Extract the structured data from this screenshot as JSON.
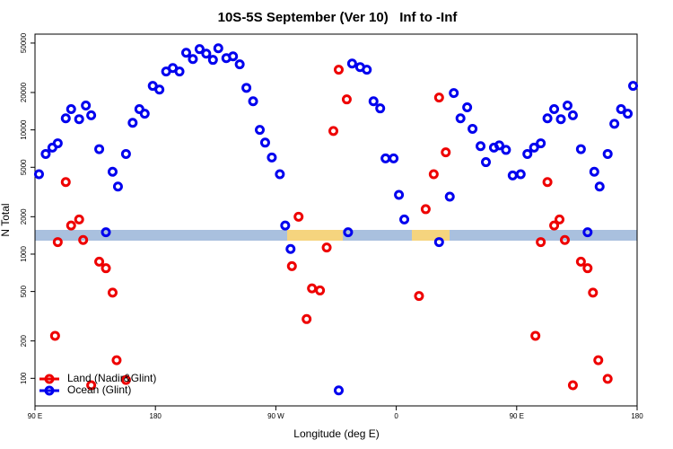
{
  "chart_data": {
    "type": "scatter",
    "title": "10S-5S September (Ver 10)   Inf to -Inf",
    "xlabel": "Longitude (deg E)",
    "ylabel": "N Total",
    "xlim": [
      90,
      540
    ],
    "xticks": [
      {
        "value": 90,
        "label": "90 E"
      },
      {
        "value": 180,
        "label": "180"
      },
      {
        "value": 270,
        "label": "90 W"
      },
      {
        "value": 360,
        "label": "0"
      },
      {
        "value": 450,
        "label": "90 E"
      },
      {
        "value": 540,
        "label": "180"
      }
    ],
    "ylim": [
      60,
      59000
    ],
    "yscale": "log",
    "yticks": [
      100,
      200,
      500,
      1000,
      2000,
      5000,
      10000,
      20000,
      50000
    ],
    "legend": "bottom-left",
    "series": [
      {
        "name": "Land (Nadir&Glint)",
        "color": "#ee0000",
        "x": [
          105,
          107,
          113,
          117,
          123,
          126,
          132,
          138,
          143,
          148,
          151,
          158,
          282,
          287,
          293,
          297,
          303,
          308,
          313,
          317,
          323,
          377,
          382,
          388,
          392,
          397,
          464,
          468,
          473,
          478,
          482,
          486,
          492,
          498,
          503,
          507,
          511,
          518
        ],
        "values": [
          220,
          1250,
          3800,
          1700,
          1900,
          1300,
          88,
          870,
          770,
          490,
          140,
          97,
          800,
          2000,
          300,
          530,
          510,
          1130,
          9800,
          30500,
          17600,
          460,
          2300,
          4400,
          18200,
          6600,
          220,
          1250,
          3800,
          1700,
          1900,
          1300,
          88,
          870,
          770,
          490,
          140,
          99
        ]
      },
      {
        "name": "Ocean (Glint)",
        "color": "#0000ee",
        "x": [
          93,
          98,
          103,
          107,
          113,
          117,
          123,
          128,
          132,
          138,
          143,
          148,
          152,
          158,
          163,
          168,
          172,
          178,
          183,
          188,
          193,
          198,
          203,
          208,
          213,
          218,
          223,
          227,
          233,
          238,
          243,
          248,
          253,
          258,
          262,
          267,
          273,
          277,
          281,
          317,
          324,
          327,
          333,
          338,
          343,
          348,
          352,
          358,
          362,
          366,
          392,
          400,
          403,
          408,
          413,
          417,
          423,
          427,
          433,
          437,
          442,
          447,
          453,
          458,
          463,
          468,
          473,
          478,
          483,
          488,
          492,
          498,
          503,
          508,
          512,
          518,
          523,
          528,
          533,
          537
        ],
        "values": [
          4400,
          6400,
          7200,
          7800,
          12400,
          14700,
          12200,
          15700,
          13100,
          7000,
          1500,
          4600,
          3500,
          6400,
          11400,
          14700,
          13500,
          22600,
          21100,
          29500,
          31500,
          29500,
          41800,
          37200,
          44700,
          41100,
          36600,
          45400,
          37800,
          39100,
          33700,
          21800,
          17000,
          10000,
          7900,
          6000,
          4400,
          1700,
          1100,
          80,
          1500,
          34200,
          32000,
          30500,
          17000,
          14900,
          5900,
          5900,
          3000,
          1900,
          1250,
          2900,
          19800,
          12400,
          15200,
          10200,
          7400,
          5500,
          7200,
          7500,
          6900,
          4300,
          4400,
          6400,
          7200,
          7800,
          12400,
          14700,
          12200,
          15700,
          13100,
          7000,
          1500,
          4600,
          3500,
          6400,
          11200,
          14700,
          13500,
          22600
        ]
      }
    ]
  }
}
